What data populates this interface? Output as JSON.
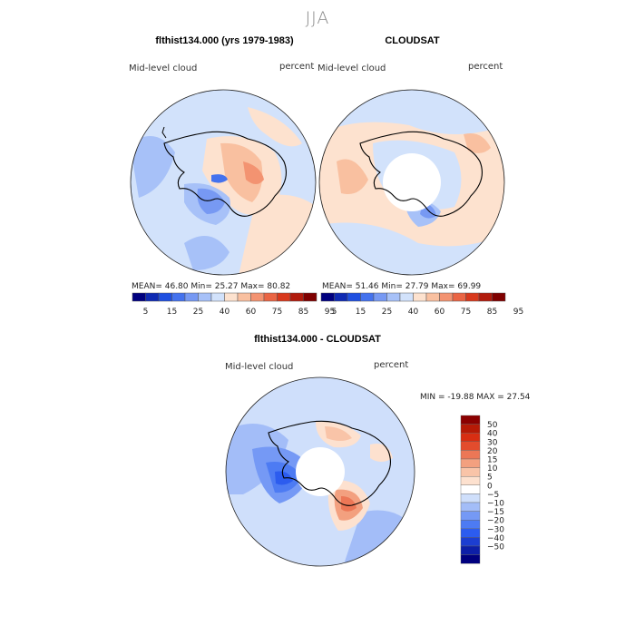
{
  "figure": {
    "title": "JJA"
  },
  "panels": [
    {
      "title": "flthist134.000 (yrs 1979-1983)",
      "left_label": "Mid-level cloud",
      "right_label": "percent",
      "stats": "MEAN=  46.80   Min=  25.27   Max=  80.82"
    },
    {
      "title": "CLOUDSAT",
      "left_label": "Mid-level cloud",
      "right_label": "percent",
      "stats": "MEAN=  51.46   Min=  27.79   Max=  69.99"
    },
    {
      "title": "flthist134.000 - CLOUDSAT",
      "left_label": "Mid-level cloud",
      "right_label": "percent",
      "stats": "MIN = -19.88  MAX =   27.54"
    }
  ],
  "colors": {
    "abs_scale": [
      "#00007f",
      "#0f2ab3",
      "#1f4fe0",
      "#4472ee",
      "#7799f3",
      "#a7c1f8",
      "#d2e2fb",
      "#fde2cf",
      "#f9c0a0",
      "#f39371",
      "#ea6544",
      "#d8391d",
      "#b11b0c",
      "#7f0000"
    ],
    "diff_scale": [
      "#00007f",
      "#0d1fa8",
      "#1c3ed1",
      "#2c5cef",
      "#4d7bf3",
      "#7599f5",
      "#a3bdf8",
      "#cfdffb",
      "#ffffff",
      "#fde1cf",
      "#f9c4a8",
      "#f3a07f",
      "#ec7756",
      "#e34c2d",
      "#d82e12",
      "#b61a06",
      "#8b0000"
    ],
    "land_outline": "#000000"
  },
  "colorbars": {
    "abs_labels": [
      "5",
      "15",
      "25",
      "40",
      "60",
      "75",
      "85",
      "95"
    ],
    "diff_labels": [
      "50",
      "40",
      "30",
      "20",
      "15",
      "10",
      "5",
      "0",
      "−5",
      "−10",
      "−15",
      "−20",
      "−30",
      "−40",
      "−50"
    ]
  },
  "chart_data": [
    {
      "type": "heatmap",
      "title": "flthist134.000 (yrs 1979-1983)",
      "variable": "Mid-level cloud",
      "units": "percent",
      "season": "JJA",
      "projection": "south-polar-stereographic",
      "contour_levels": [
        5,
        10,
        15,
        20,
        25,
        30,
        40,
        50,
        60,
        70,
        75,
        80,
        85,
        90,
        95
      ],
      "stats": {
        "mean": 46.8,
        "min": 25.27,
        "max": 80.82
      }
    },
    {
      "type": "heatmap",
      "title": "CLOUDSAT",
      "variable": "Mid-level cloud",
      "units": "percent",
      "season": "JJA",
      "projection": "south-polar-stereographic",
      "contour_levels": [
        5,
        10,
        15,
        20,
        25,
        30,
        40,
        50,
        60,
        70,
        75,
        80,
        85,
        90,
        95
      ],
      "stats": {
        "mean": 51.46,
        "min": 27.79,
        "max": 69.99
      }
    },
    {
      "type": "heatmap",
      "title": "flthist134.000 - CLOUDSAT",
      "variable": "Mid-level cloud",
      "units": "percent",
      "season": "JJA",
      "projection": "south-polar-stereographic",
      "contour_levels": [
        -50,
        -40,
        -30,
        -20,
        -15,
        -10,
        -5,
        0,
        5,
        10,
        15,
        20,
        30,
        40,
        50
      ],
      "stats": {
        "min": -19.88,
        "max": 27.54
      }
    }
  ]
}
